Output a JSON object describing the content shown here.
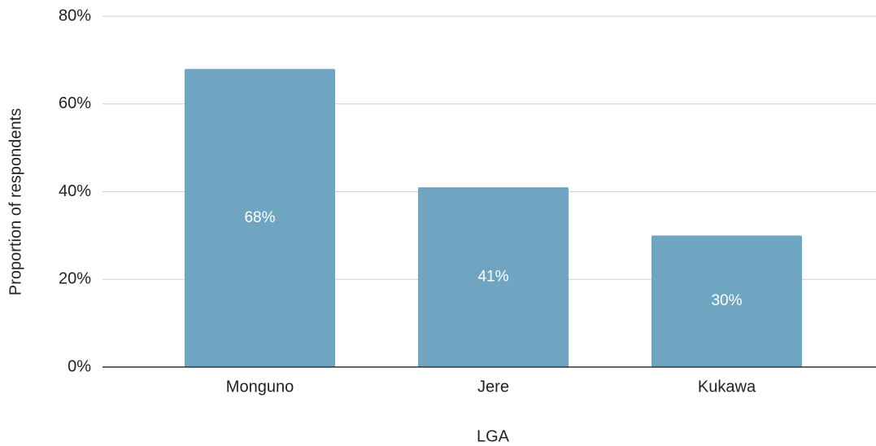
{
  "chart_data": {
    "type": "bar",
    "x_label": "LGA",
    "y_label": "Proportion of respondents",
    "categories": [
      "Monguno",
      "Jere",
      "Kukawa"
    ],
    "values": [
      68,
      41,
      30
    ],
    "value_labels": [
      "68%",
      "41%",
      "30%"
    ],
    "color": "#6fa5c0",
    "ylim": [
      0,
      80
    ],
    "yticks": [
      {
        "value": 0,
        "label": "0%"
      },
      {
        "value": 20,
        "label": "20%"
      },
      {
        "value": 40,
        "label": "40%"
      },
      {
        "value": 60,
        "label": "60%"
      },
      {
        "value": 80,
        "label": "80%"
      }
    ],
    "grid": true
  }
}
